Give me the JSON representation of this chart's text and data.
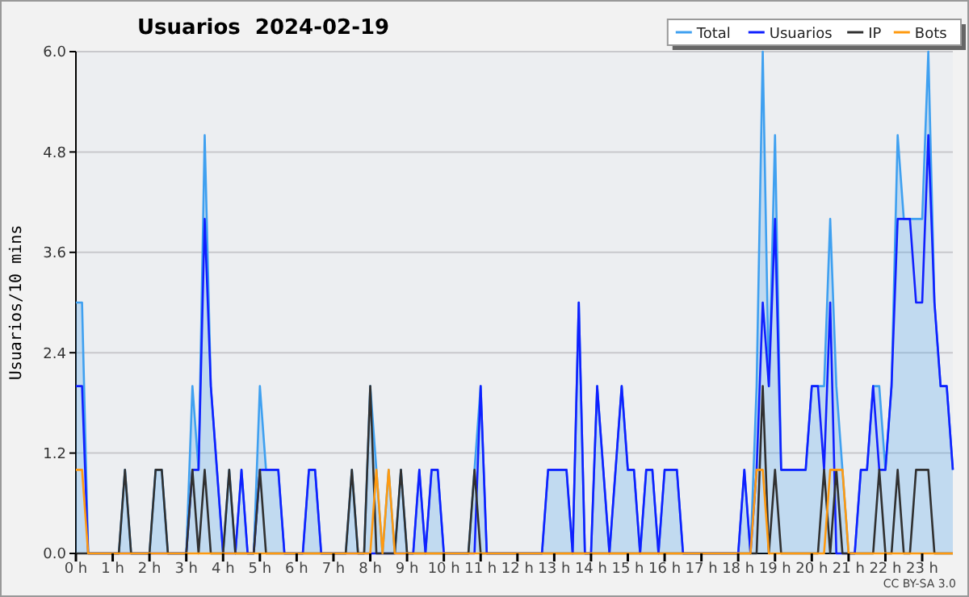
{
  "chart_data": {
    "type": "line",
    "title": "Usuarios  2024-02-19",
    "ylabel": "Usuarios/10 mins",
    "annotations": [
      "CC BY-SA 3.0"
    ],
    "x": [
      0,
      0.1667,
      0.3333,
      0.5,
      0.6667,
      0.8333,
      1,
      1.1667,
      1.3333,
      1.5,
      1.6667,
      1.8333,
      2,
      2.1667,
      2.3333,
      2.5,
      2.6667,
      2.8333,
      3,
      3.1667,
      3.3333,
      3.5,
      3.6667,
      3.8333,
      4,
      4.1667,
      4.3333,
      4.5,
      4.6667,
      4.8333,
      5,
      5.1667,
      5.3333,
      5.5,
      5.6667,
      5.8333,
      6,
      6.1667,
      6.3333,
      6.5,
      6.6667,
      6.8333,
      7,
      7.1667,
      7.3333,
      7.5,
      7.6667,
      7.8333,
      8,
      8.1667,
      8.3333,
      8.5,
      8.6667,
      8.8333,
      9,
      9.1667,
      9.3333,
      9.5,
      9.6667,
      9.8333,
      10,
      10.1667,
      10.3333,
      10.5,
      10.6667,
      10.8333,
      11,
      11.1667,
      11.3333,
      11.5,
      11.6667,
      11.8333,
      12,
      12.1667,
      12.3333,
      12.5,
      12.6667,
      12.8333,
      13,
      13.1667,
      13.3333,
      13.5,
      13.6667,
      13.8333,
      14,
      14.1667,
      14.3333,
      14.5,
      14.6667,
      14.8333,
      15,
      15.1667,
      15.3333,
      15.5,
      15.6667,
      15.8333,
      16,
      16.1667,
      16.3333,
      16.5,
      16.6667,
      16.8333,
      17,
      17.1667,
      17.3333,
      17.5,
      17.6667,
      17.8333,
      18,
      18.1667,
      18.3333,
      18.5,
      18.6667,
      18.8333,
      19,
      19.1667,
      19.3333,
      19.5,
      19.6667,
      19.8333,
      20,
      20.1667,
      20.3333,
      20.5,
      20.6667,
      20.8333,
      21,
      21.1667,
      21.3333,
      21.5,
      21.6667,
      21.8333,
      22,
      22.1667,
      22.3333,
      22.5,
      22.6667,
      22.8333,
      23,
      23.1667,
      23.3333,
      23.5,
      23.6667,
      23.8333
    ],
    "xlim": [
      0,
      23.8333
    ],
    "xticks": [
      {
        "value": 0,
        "label": "0 h"
      },
      {
        "value": 1,
        "label": "1 h"
      },
      {
        "value": 2,
        "label": "2 h"
      },
      {
        "value": 3,
        "label": "3 h"
      },
      {
        "value": 4,
        "label": "4 h"
      },
      {
        "value": 5,
        "label": "5 h"
      },
      {
        "value": 6,
        "label": "6 h"
      },
      {
        "value": 7,
        "label": "7 h"
      },
      {
        "value": 8,
        "label": "8 h"
      },
      {
        "value": 9,
        "label": "9 h"
      },
      {
        "value": 10,
        "label": "10 h"
      },
      {
        "value": 11,
        "label": "11 h"
      },
      {
        "value": 12,
        "label": "12 h"
      },
      {
        "value": 13,
        "label": "13 h"
      },
      {
        "value": 14,
        "label": "14 h"
      },
      {
        "value": 15,
        "label": "15 h"
      },
      {
        "value": 16,
        "label": "16 h"
      },
      {
        "value": 17,
        "label": "17 h"
      },
      {
        "value": 18,
        "label": "18 h"
      },
      {
        "value": 19,
        "label": "19 h"
      },
      {
        "value": 20,
        "label": "20 h"
      },
      {
        "value": 21,
        "label": "21 h"
      },
      {
        "value": 22,
        "label": "22 h"
      },
      {
        "value": 23,
        "label": "23 h"
      }
    ],
    "ylim": [
      0,
      6
    ],
    "yticks": [
      {
        "value": 0,
        "label": "0.0"
      },
      {
        "value": 1.2,
        "label": "1.2"
      },
      {
        "value": 2.4,
        "label": "2.4"
      },
      {
        "value": 3.6,
        "label": "3.6"
      },
      {
        "value": 4.8,
        "label": "4.8"
      },
      {
        "value": 6,
        "label": "6.0"
      }
    ],
    "grid": "y",
    "legend": "top right",
    "marker": "none",
    "series": [
      {
        "name": "Total",
        "type": "area",
        "color": "#3fa0f0",
        "values": [
          3,
          3,
          0,
          0,
          0,
          0,
          0,
          0,
          1,
          0,
          0,
          0,
          0,
          1,
          1,
          0,
          0,
          0,
          0,
          2,
          1,
          5,
          2,
          1,
          0,
          1,
          0,
          1,
          0,
          0,
          2,
          1,
          1,
          1,
          0,
          0,
          0,
          0,
          1,
          1,
          0,
          0,
          0,
          0,
          0,
          1,
          0,
          0,
          2,
          1,
          0,
          1,
          0,
          1,
          0,
          0,
          1,
          0,
          1,
          1,
          0,
          0,
          0,
          0,
          0,
          1,
          2,
          0,
          0,
          0,
          0,
          0,
          0,
          0,
          0,
          0,
          0,
          1,
          1,
          1,
          1,
          0,
          3,
          0,
          0,
          2,
          1,
          0,
          1,
          2,
          1,
          1,
          0,
          1,
          1,
          0,
          1,
          1,
          1,
          0,
          0,
          0,
          0,
          0,
          0,
          0,
          0,
          0,
          0,
          1,
          0,
          2,
          6,
          2,
          5,
          1,
          1,
          1,
          1,
          1,
          2,
          2,
          2,
          4,
          2,
          1,
          0,
          0,
          1,
          1,
          2,
          2,
          1,
          2,
          5,
          4,
          4,
          4,
          4,
          6,
          3,
          2,
          2,
          1
        ]
      },
      {
        "name": "Usuarios",
        "color": "#1020ff",
        "values": [
          2,
          2,
          0,
          0,
          0,
          0,
          0,
          0,
          0,
          0,
          0,
          0,
          0,
          0,
          0,
          0,
          0,
          0,
          0,
          1,
          1,
          4,
          2,
          1,
          0,
          0,
          0,
          1,
          0,
          0,
          1,
          1,
          1,
          1,
          0,
          0,
          0,
          0,
          1,
          1,
          0,
          0,
          0,
          0,
          0,
          0,
          0,
          0,
          0,
          0,
          0,
          0,
          0,
          0,
          0,
          0,
          1,
          0,
          1,
          1,
          0,
          0,
          0,
          0,
          0,
          0,
          2,
          0,
          0,
          0,
          0,
          0,
          0,
          0,
          0,
          0,
          0,
          1,
          1,
          1,
          1,
          0,
          3,
          0,
          0,
          2,
          1,
          0,
          1,
          2,
          1,
          1,
          0,
          1,
          1,
          0,
          1,
          1,
          1,
          0,
          0,
          0,
          0,
          0,
          0,
          0,
          0,
          0,
          0,
          1,
          0,
          1,
          3,
          2,
          4,
          1,
          1,
          1,
          1,
          1,
          2,
          2,
          1,
          3,
          0,
          0,
          0,
          0,
          1,
          1,
          2,
          1,
          1,
          2,
          4,
          4,
          4,
          3,
          3,
          5,
          3,
          2,
          2,
          1
        ]
      },
      {
        "name": "IP",
        "color": "#303030",
        "values": [
          0,
          0,
          0,
          0,
          0,
          0,
          0,
          0,
          1,
          0,
          0,
          0,
          0,
          1,
          1,
          0,
          0,
          0,
          0,
          1,
          0,
          1,
          0,
          0,
          0,
          1,
          0,
          0,
          0,
          0,
          1,
          0,
          0,
          0,
          0,
          0,
          0,
          0,
          0,
          0,
          0,
          0,
          0,
          0,
          0,
          1,
          0,
          0,
          2,
          0,
          0,
          0,
          0,
          1,
          0,
          0,
          0,
          0,
          0,
          0,
          0,
          0,
          0,
          0,
          0,
          1,
          0,
          0,
          0,
          0,
          0,
          0,
          0,
          0,
          0,
          0,
          0,
          0,
          0,
          0,
          0,
          0,
          0,
          0,
          0,
          0,
          0,
          0,
          0,
          0,
          0,
          0,
          0,
          0,
          0,
          0,
          0,
          0,
          0,
          0,
          0,
          0,
          0,
          0,
          0,
          0,
          0,
          0,
          0,
          0,
          0,
          0,
          2,
          0,
          1,
          0,
          0,
          0,
          0,
          0,
          0,
          0,
          1,
          0,
          1,
          0,
          0,
          0,
          0,
          0,
          0,
          1,
          0,
          0,
          1,
          0,
          0,
          1,
          1,
          1,
          0,
          0,
          0,
          0
        ]
      },
      {
        "name": "Bots",
        "color": "#ff9a10",
        "values": [
          1,
          1,
          0,
          0,
          0,
          0,
          0,
          0,
          0,
          0,
          0,
          0,
          0,
          0,
          0,
          0,
          0,
          0,
          0,
          0,
          0,
          0,
          0,
          0,
          0,
          0,
          0,
          0,
          0,
          0,
          0,
          0,
          0,
          0,
          0,
          0,
          0,
          0,
          0,
          0,
          0,
          0,
          0,
          0,
          0,
          0,
          0,
          0,
          0,
          1,
          0,
          1,
          0,
          0,
          0,
          0,
          0,
          0,
          0,
          0,
          0,
          0,
          0,
          0,
          0,
          0,
          0,
          0,
          0,
          0,
          0,
          0,
          0,
          0,
          0,
          0,
          0,
          0,
          0,
          0,
          0,
          0,
          0,
          0,
          0,
          0,
          0,
          0,
          0,
          0,
          0,
          0,
          0,
          0,
          0,
          0,
          0,
          0,
          0,
          0,
          0,
          0,
          0,
          0,
          0,
          0,
          0,
          0,
          0,
          0,
          0,
          1,
          1,
          0,
          0,
          0,
          0,
          0,
          0,
          0,
          0,
          0,
          0,
          1,
          1,
          1,
          0,
          0,
          0,
          0,
          0,
          0,
          0,
          0,
          0,
          0,
          0,
          0,
          0,
          0,
          0,
          0,
          0,
          0
        ]
      }
    ]
  }
}
